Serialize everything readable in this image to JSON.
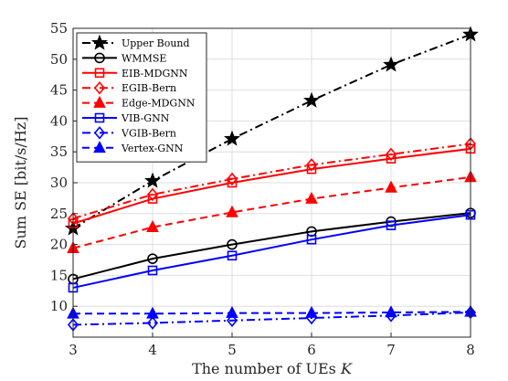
{
  "chart_data": {
    "type": "line",
    "xlabel": "The number of UEs",
    "xlabel_symbol": "K",
    "ylabel": "Sum SE [bit/s/Hz]",
    "xlim": [
      3,
      8
    ],
    "ylim": [
      5,
      55
    ],
    "xticks": [
      3,
      4,
      5,
      6,
      7,
      8
    ],
    "yticks": [
      10,
      15,
      20,
      25,
      30,
      35,
      40,
      45,
      50,
      55
    ],
    "grid": true,
    "legend_position": "top-left",
    "x": [
      3,
      4,
      5,
      6,
      7,
      8
    ],
    "series": [
      {
        "name": "Upper Bound",
        "color": "#000000",
        "dash": "dashdot",
        "marker": "star",
        "values": [
          22.6,
          30.3,
          37.1,
          43.3,
          49.1,
          54.0
        ]
      },
      {
        "name": "WMMSE",
        "color": "#000000",
        "dash": "solid",
        "marker": "circle",
        "values": [
          14.4,
          17.7,
          20.0,
          22.1,
          23.7,
          25.1
        ]
      },
      {
        "name": "EIB-MDGNN",
        "color": "#ff0000",
        "dash": "solid",
        "marker": "square",
        "values": [
          23.4,
          27.4,
          30.0,
          32.2,
          33.9,
          35.5
        ]
      },
      {
        "name": "EGIB-Bern",
        "color": "#ff0000",
        "dash": "dashdot",
        "marker": "diamond",
        "values": [
          24.2,
          28.1,
          30.6,
          32.9,
          34.6,
          36.3
        ]
      },
      {
        "name": "Edge-MDGNN",
        "color": "#ff0000",
        "dash": "dashed",
        "marker": "triangle",
        "values": [
          19.4,
          22.8,
          25.2,
          27.4,
          29.2,
          30.9
        ]
      },
      {
        "name": "VIB-GNN",
        "color": "#0000ff",
        "dash": "solid",
        "marker": "square",
        "values": [
          13.0,
          15.8,
          18.2,
          20.8,
          23.1,
          24.8
        ]
      },
      {
        "name": "VGIB-Bern",
        "color": "#0000ff",
        "dash": "dashdot",
        "marker": "diamond",
        "values": [
          7.0,
          7.3,
          7.7,
          8.1,
          8.5,
          9.0
        ]
      },
      {
        "name": "Vertex-GNN",
        "color": "#0000ff",
        "dash": "dashed",
        "marker": "triangle",
        "values": [
          8.8,
          8.8,
          8.9,
          8.9,
          9.0,
          9.1
        ]
      }
    ]
  }
}
